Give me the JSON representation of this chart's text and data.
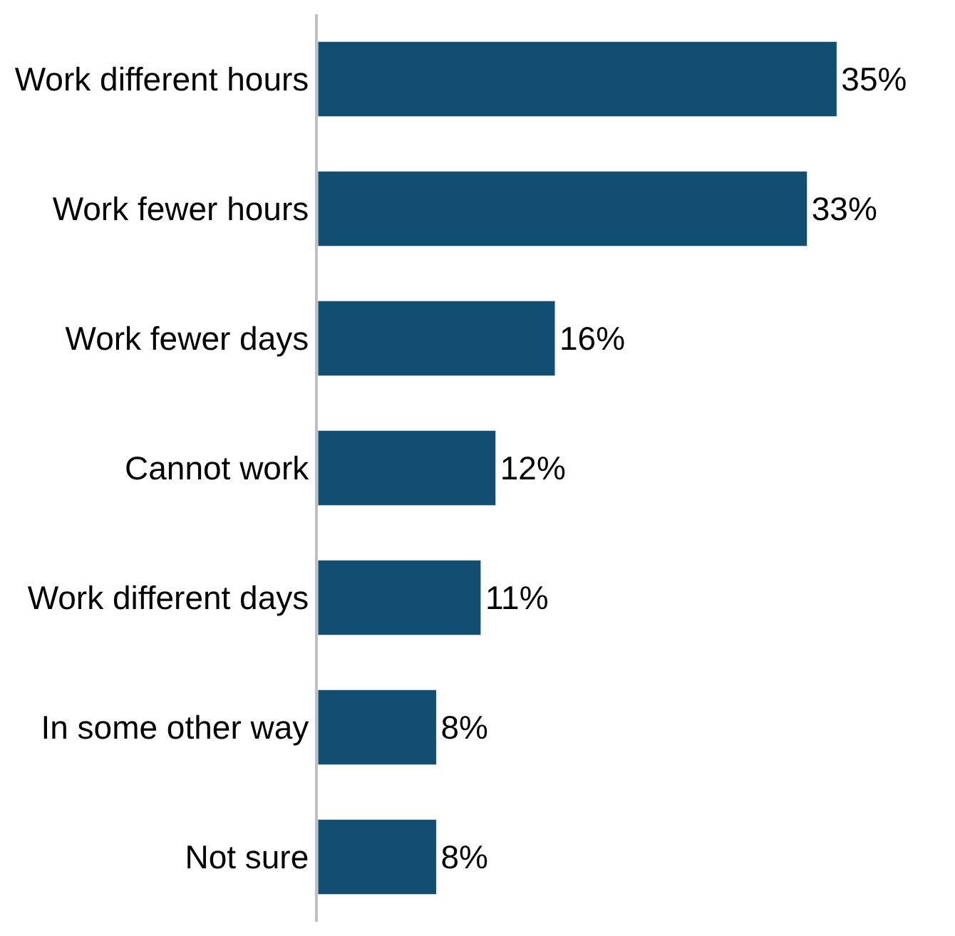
{
  "chart_data": {
    "type": "bar",
    "orientation": "horizontal",
    "categories": [
      "Work different hours",
      "Work fewer hours",
      "Work fewer days",
      "Cannot work",
      "Work different days",
      "In some other way",
      "Not sure"
    ],
    "values": [
      35,
      33,
      16,
      12,
      11,
      8,
      8
    ],
    "value_labels": [
      "35%",
      "33%",
      "16%",
      "12%",
      "11%",
      "8%",
      "8%"
    ],
    "color": "#124e72"
  }
}
